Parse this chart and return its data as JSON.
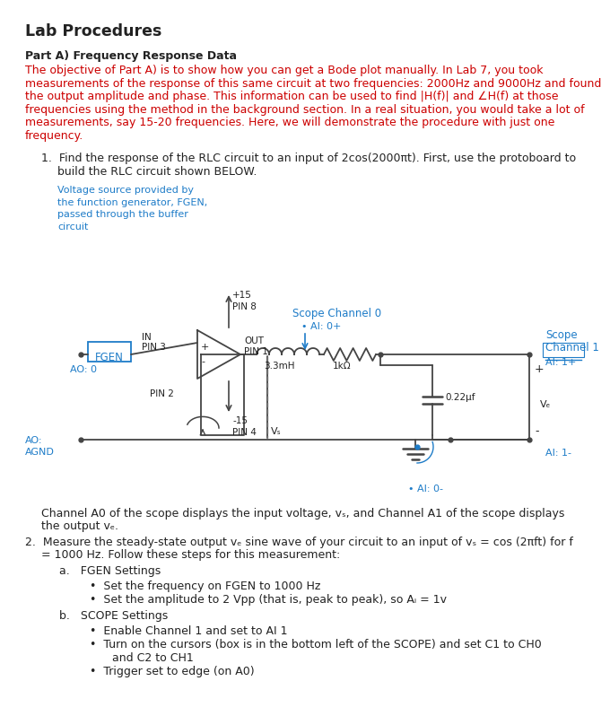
{
  "title": "Lab Procedures",
  "bg_color": "#ffffff",
  "text_color": "#1a1a1a",
  "blue_color": "#1e7cc8",
  "red_color": "#cc0000",
  "dark_color": "#222222",
  "gray_color": "#444444",
  "title_fontsize": 12.5,
  "body_fontsize": 9.0,
  "small_fontsize": 7.8,
  "part_a_heading": "Part A) Frequency Response Data",
  "part_a_body_lines": [
    "The objective of Part A) is to show how you can get a Bode plot manually. In Lab 7, you took",
    "measurements of the response of this same circuit at two frequencies: 2000Hz and 9000Hz and found",
    "the output amplitude and phase. This information can be used to find |H(f)| and ∠H(f) at those",
    "frequencies using the method in the background section. In a real situation, you would take a lot of",
    "measurements, say 15-20 frequencies. Here, we will demonstrate the procedure with just one",
    "frequency."
  ],
  "item1_line1": "Find the response of the RLC circuit to an input of 2cos(2000πt). First, use the protoboard to",
  "item1_line2": "build the RLC circuit shown BELOW.",
  "voltage_note_lines": [
    "Voltage source provided by",
    "the function generator, FGEN,",
    "passed through the buffer",
    "circuit"
  ],
  "scope_ch0_label": "Scope Channel 0",
  "scope_ch1_line1": "Scope",
  "scope_ch1_line2": "Channel 1",
  "ai0plus_label": "• AI: 0+",
  "ai1plus_label": "AI: 1+",
  "ai0minus_label": "• AI: 0-",
  "ai1minus_label": "AI: 1-",
  "fgen_label": "FGEN",
  "ao0_label": "AO: 0",
  "ao_label": "AO:",
  "agnd_label": "AGND",
  "in_label": "IN",
  "pin3_label": "PIN 3",
  "out_label": "OUT",
  "pin1_label": "PIN 1",
  "pin8_label": "PIN 8",
  "plus15_label": "+15",
  "pin2_label": "PIN 2",
  "minus15_label": "-15",
  "pin4_label": "PIN 4",
  "inductor_label": "3.3mH",
  "resistor_label": "1kΩ",
  "capacitor_label": "0.22μf",
  "vs_label": "Vₛ",
  "vc_label": "Vₑ",
  "channel_note_line1": "Channel A0 of the scope displays the input voltage, vₛ, and Channel A1 of the scope displays",
  "channel_note_line2": "the output vₑ.",
  "item2_line1": "Measure the steady-state output vₑ sine wave of your circuit to an input of vₛ = cos (2πft) for f",
  "item2_line2": "= 1000 Hz. Follow these steps for this measurement:",
  "fgen_heading": "a.   FGEN Settings",
  "fgen_b1": "Set the frequency on FGEN to 1000 Hz",
  "fgen_b2": "Set the amplitude to 2 Vpp (that is, peak to peak), so Aᵢ = 1v",
  "scope_heading": "b.   SCOPE Settings",
  "scope_b1": "Enable Channel 1 and set to AI 1",
  "scope_b2": "Turn on the cursors (box is in the bottom left of the SCOPE) and set C1 to CH0",
  "scope_b2b": "and C2 to CH1",
  "scope_b3": "Trigger set to edge (on A0)"
}
